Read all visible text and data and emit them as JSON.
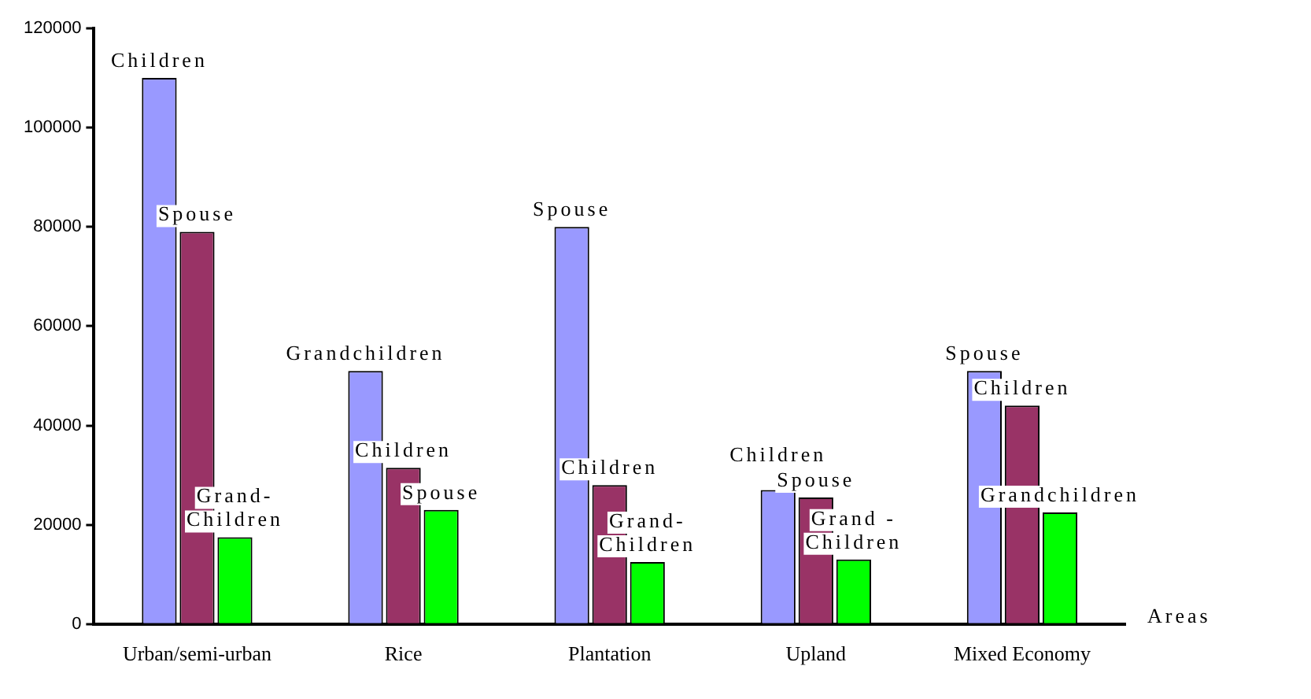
{
  "chart_data": {
    "type": "bar",
    "xlabel": "Areas",
    "categories": [
      "Urban/semi-urban",
      "Rice",
      "Plantation",
      "Upland",
      "Mixed Economy"
    ],
    "series": [
      {
        "color": "#9999ff",
        "values": [
          110000,
          51000,
          80000,
          27000,
          51000
        ],
        "value_labels": [
          "Children",
          "Grandchildren",
          "Spouse",
          "Children",
          "Spouse"
        ]
      },
      {
        "color": "#993366",
        "values": [
          79000,
          31500,
          28000,
          25500,
          44000
        ],
        "value_labels": [
          "Spouse",
          "Children",
          "Children",
          "Spouse",
          "Children"
        ]
      },
      {
        "color": "#00ff00",
        "values": [
          17500,
          23000,
          12500,
          13000,
          22500
        ],
        "value_labels": [
          "Grand-\nChildren",
          "Spouse",
          "Grand-\nChildren",
          "Grand -\nChildren",
          "Grandchildren"
        ]
      }
    ],
    "ylim": [
      0,
      120000
    ],
    "yticks": [
      0,
      20000,
      40000,
      60000,
      80000,
      100000,
      120000
    ],
    "grid": false,
    "legend": false
  }
}
